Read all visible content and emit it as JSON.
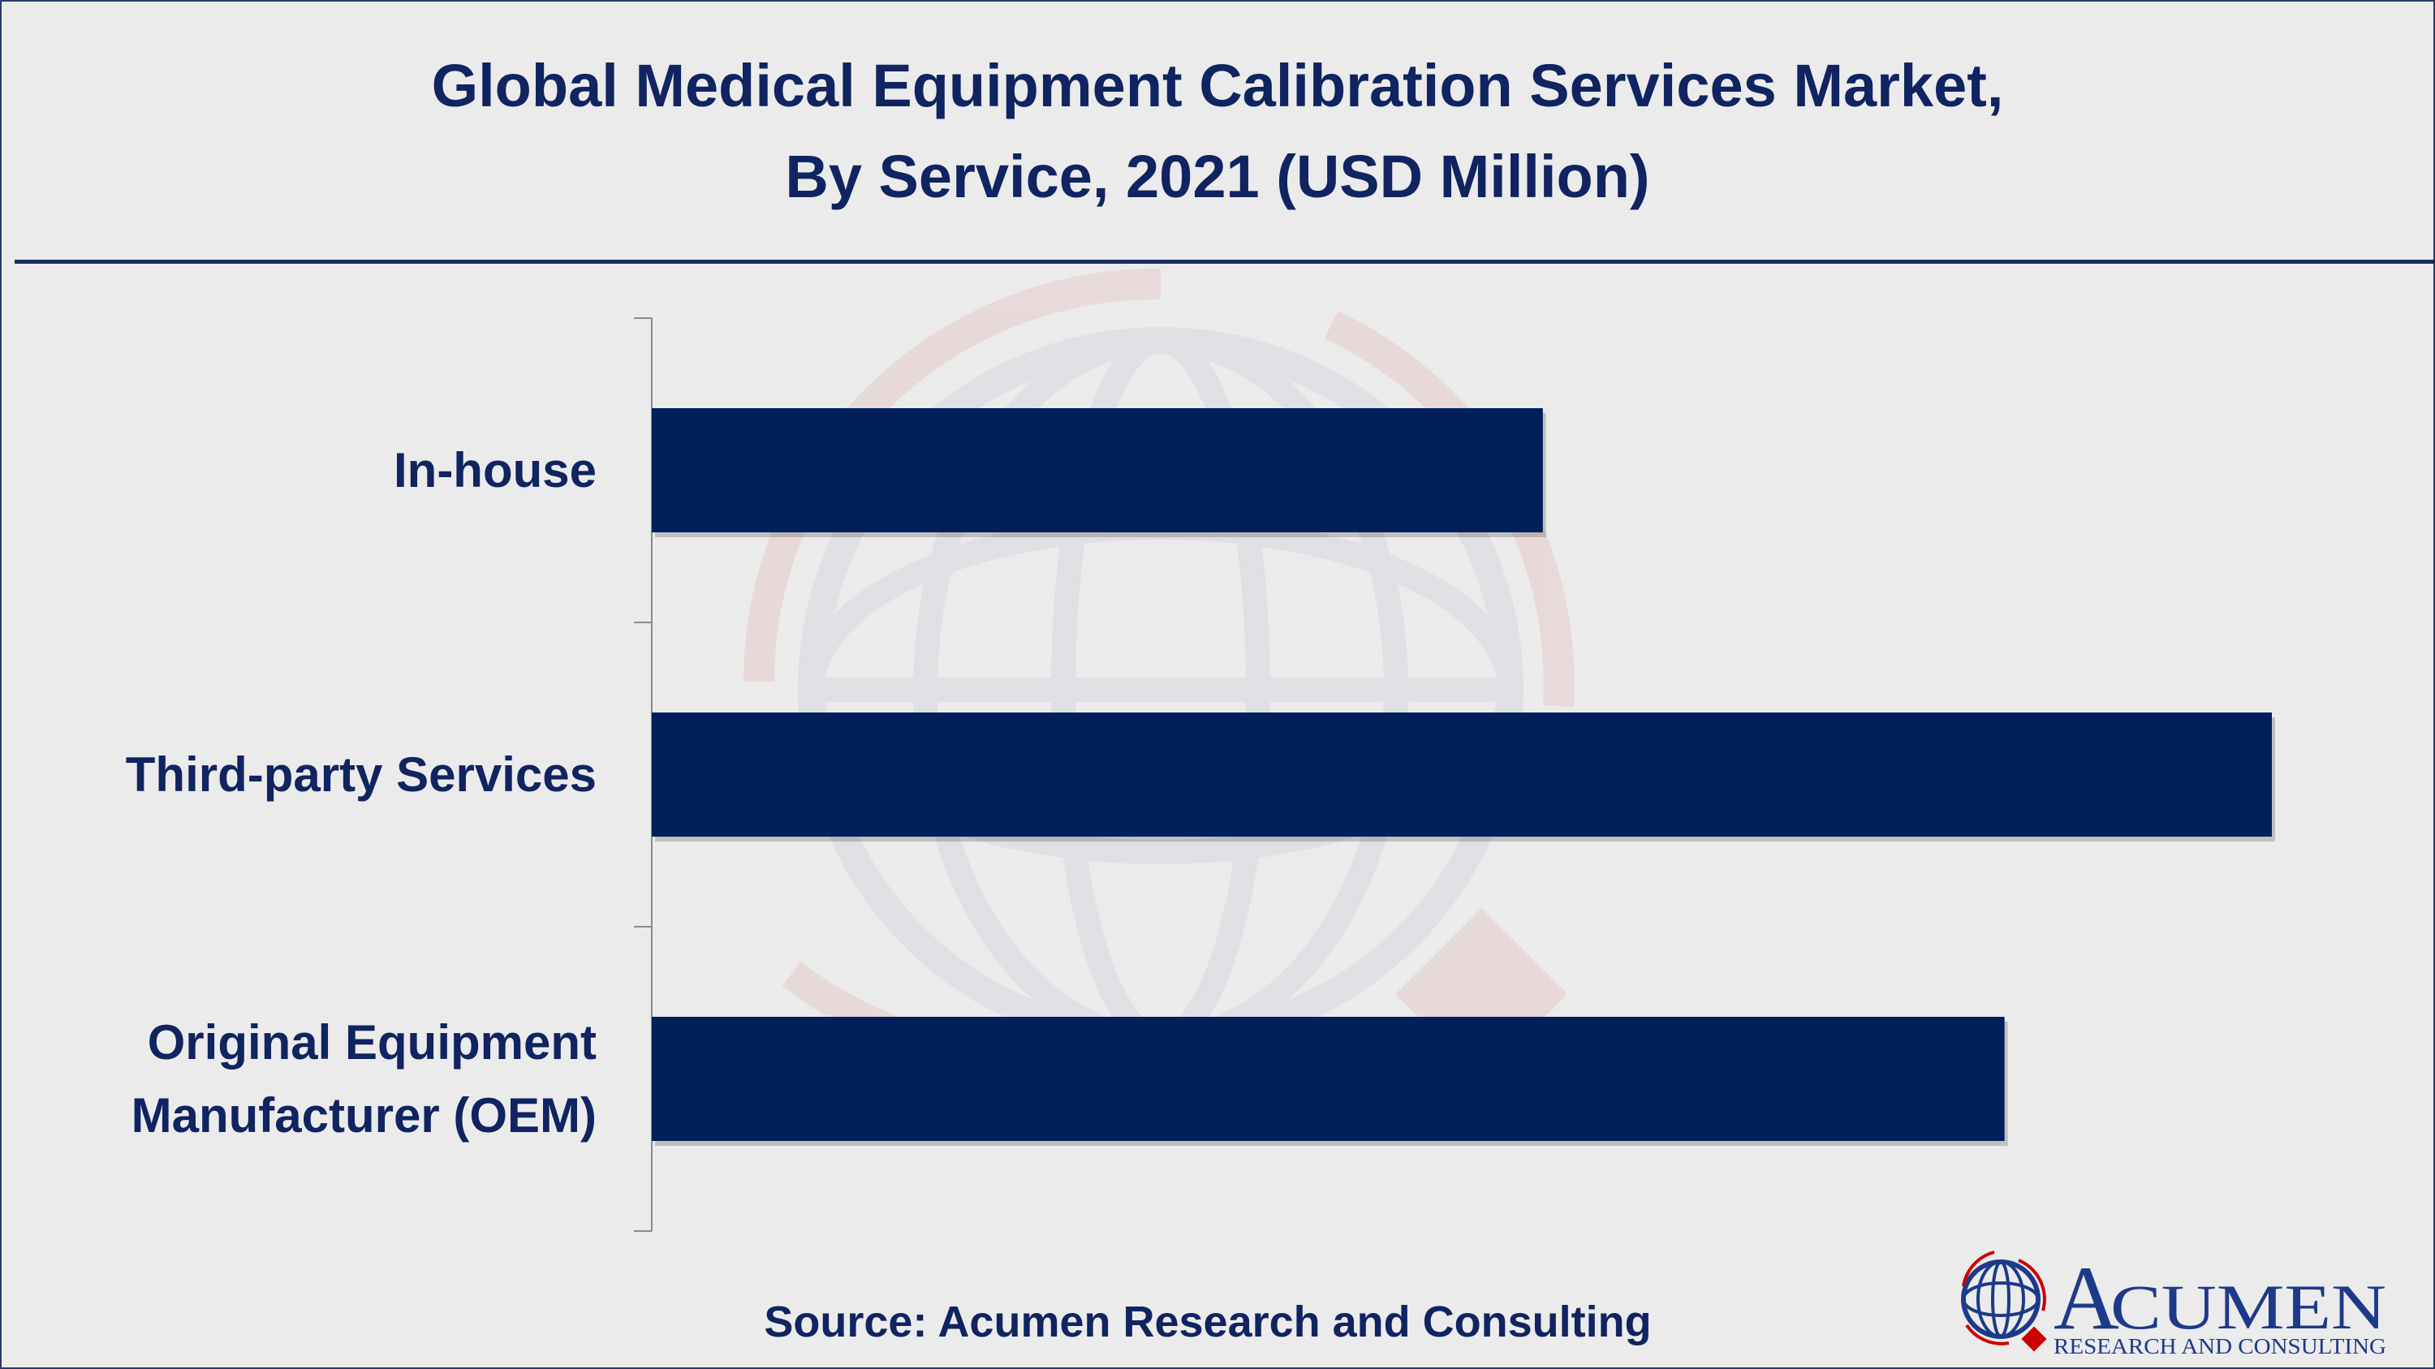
{
  "chart_data": {
    "type": "bar",
    "orientation": "horizontal",
    "title": "Global Medical Equipment Calibration Services Market,",
    "subtitle": "By Service, 2021 (USD Million)",
    "categories": [
      "In-house",
      "Third-party Services",
      "Original Equipment Manufacturer (OEM)"
    ],
    "category_lines": [
      [
        "In-house"
      ],
      [
        "Third-party Services"
      ],
      [
        "Original Equipment",
        "Manufacturer (OEM)"
      ]
    ],
    "values": [
      55,
      100,
      83.5
    ],
    "value_note": "relative bar lengths (no axis values shown)",
    "xlim": [
      0,
      100
    ],
    "xlabel": "",
    "ylabel": "",
    "grid": false,
    "bar_color": "#001f5b",
    "source": "Source: Acumen Research and Consulting"
  },
  "logo": {
    "name": "ACUMEN",
    "tagline": "RESEARCH AND CONSULTING"
  }
}
